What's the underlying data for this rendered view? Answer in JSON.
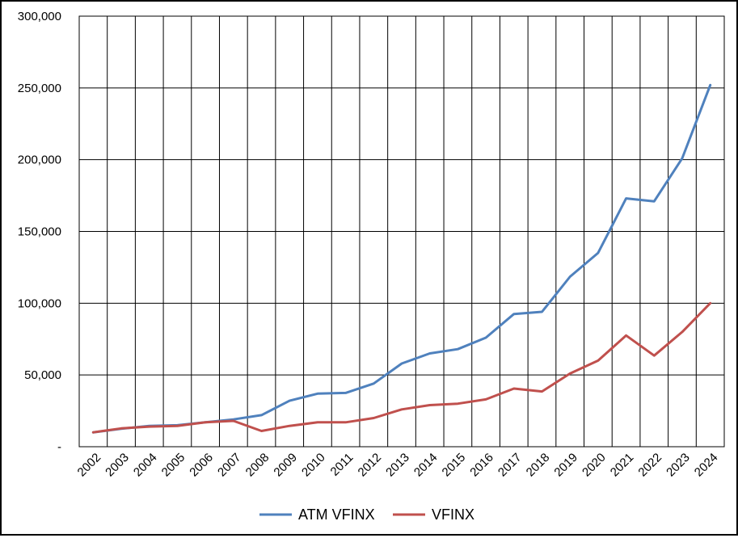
{
  "chart_data": {
    "type": "line",
    "title": "",
    "xlabel": "",
    "ylabel": "",
    "ylim": [
      0,
      300000
    ],
    "yticks": [
      0,
      50000,
      100000,
      150000,
      200000,
      250000,
      300000
    ],
    "ytick_labels": [
      "-",
      "50,000",
      "100,000",
      "150,000",
      "200,000",
      "250,000",
      "300,000"
    ],
    "categories": [
      "2002",
      "2003",
      "2004",
      "2005",
      "2006",
      "2007",
      "2008",
      "2009",
      "2010",
      "2011",
      "2012",
      "2013",
      "2014",
      "2015",
      "2016",
      "2017",
      "2018",
      "2019",
      "2020",
      "2021",
      "2022",
      "2023",
      "2024"
    ],
    "grid": true,
    "legend_position": "bottom",
    "series": [
      {
        "name": "ATM VFINX",
        "color": "#4F81BD",
        "values": [
          10000,
          12500,
          14500,
          15000,
          17000,
          19000,
          22000,
          32000,
          37000,
          37500,
          44000,
          58000,
          65000,
          68000,
          76000,
          92500,
          94000,
          118500,
          135000,
          173000,
          171000,
          201000,
          252000
        ]
      },
      {
        "name": "VFINX",
        "color": "#C0504D",
        "values": [
          10000,
          12800,
          14000,
          14500,
          17000,
          18000,
          11000,
          14500,
          17000,
          17000,
          20000,
          26000,
          29000,
          30000,
          33000,
          40500,
          38500,
          51000,
          60000,
          77500,
          63500,
          80000,
          100000
        ]
      }
    ]
  }
}
